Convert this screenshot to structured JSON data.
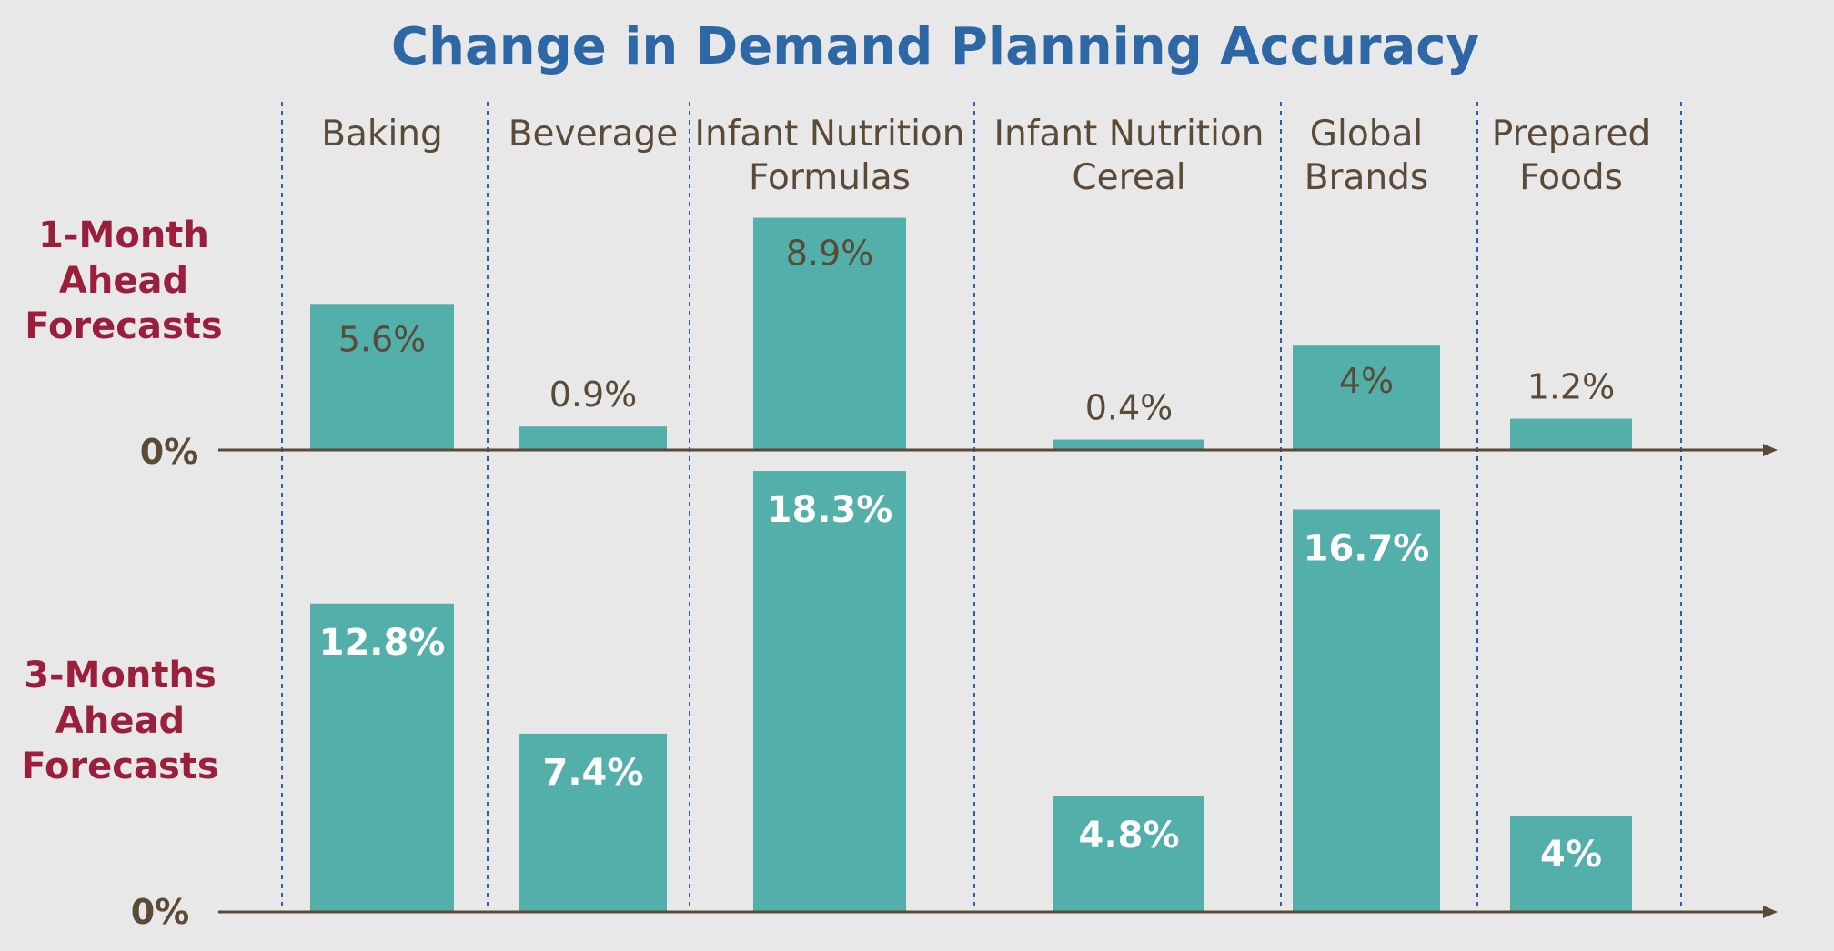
{
  "chart_data": {
    "type": "bar",
    "title": "Change in Demand Planning Accuracy",
    "categories": [
      [
        "Baking"
      ],
      [
        "Beverage"
      ],
      [
        "Infant Nutrition",
        "Formulas"
      ],
      [
        "Infant Nutrition",
        "Cereal"
      ],
      [
        "Global",
        "Brands"
      ],
      [
        "Prepared",
        "Foods"
      ]
    ],
    "baseline_label": "0%",
    "series": [
      {
        "name": [
          "1-Month",
          "Ahead",
          "Forecasts"
        ],
        "values": [
          5.6,
          0.9,
          8.9,
          0.4,
          4,
          1.2
        ],
        "labels": [
          "5.6%",
          "0.9%",
          "8.9%",
          "0.4%",
          "4%",
          "1.2%"
        ]
      },
      {
        "name": [
          "3-Months",
          "Ahead",
          "Forecasts"
        ],
        "values": [
          12.8,
          7.4,
          18.3,
          4.8,
          16.7,
          4
        ],
        "labels": [
          "12.8%",
          "7.4%",
          "18.3%",
          "4.8%",
          "16.7%",
          "4%"
        ]
      }
    ],
    "colors": {
      "bar": "#52afaa",
      "title": "#2e67a6",
      "series_label": "#9a1f3c",
      "text": "#5a4a38",
      "divider": "#2e5fa8",
      "axis": "#5a4a38"
    },
    "grid": false,
    "legend": "left"
  }
}
